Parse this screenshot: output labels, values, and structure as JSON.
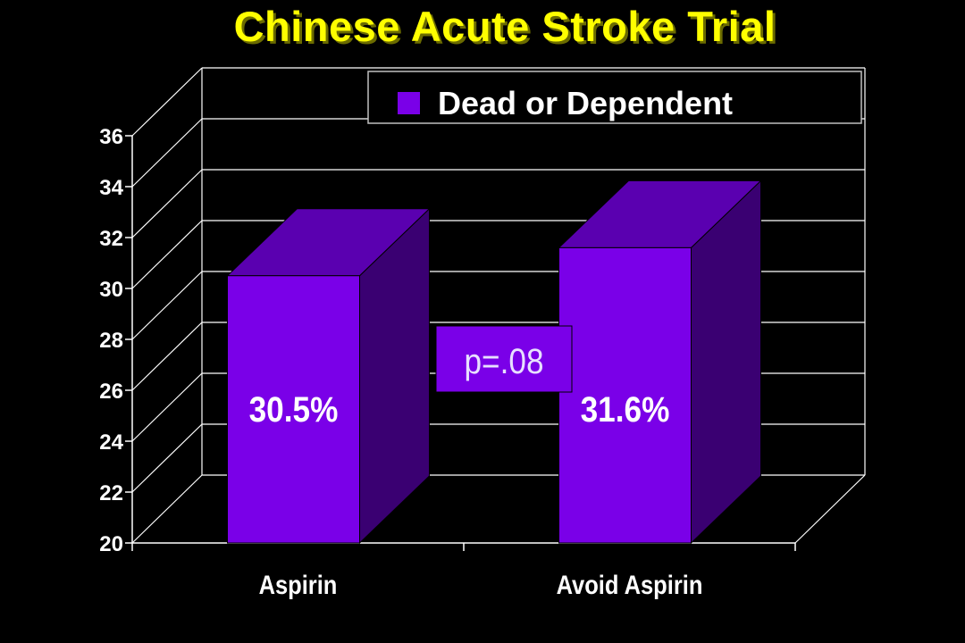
{
  "title": "Chinese Acute Stroke Trial",
  "colors": {
    "background": "#000000",
    "title": "#ffff00",
    "bar_front": "#7a00e8",
    "bar_top": "#5a00b0",
    "bar_side": "#3a0072",
    "grid": "#ffffff",
    "annotation_box": "#7a00e8",
    "annotation_text": "#e8e0ff"
  },
  "chart_data": {
    "type": "bar",
    "categories": [
      "Aspirin",
      "Avoid Aspirin"
    ],
    "series": [
      {
        "name": "Dead or Dependent",
        "values": [
          30.5,
          31.6
        ]
      }
    ],
    "data_labels": [
      "30.5%",
      "31.6%"
    ],
    "annotation": "p=.08",
    "ylim": [
      20,
      36
    ],
    "yticks": [
      20,
      22,
      24,
      26,
      28,
      30,
      32,
      34,
      36
    ],
    "grid": true,
    "legend_position": "top-right",
    "three_d": true
  }
}
